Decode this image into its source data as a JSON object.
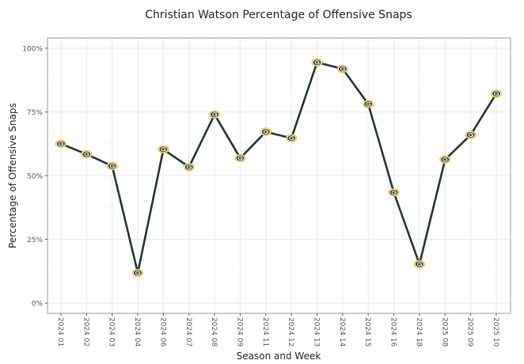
{
  "chart_data": {
    "type": "line",
    "title": "Christian Watson Percentage of Offensive Snaps",
    "xlabel": "Season and Week",
    "ylabel": "Percentage of Offensive Snaps",
    "categories": [
      "2024 01",
      "2024 02",
      "2024 03",
      "2024 04",
      "2024 06",
      "2024 07",
      "2024 08",
      "2024 09",
      "2024 11",
      "2024 12",
      "2024 13",
      "2024 14",
      "2024 15",
      "2024 16",
      "2024 18",
      "2025 08",
      "2025 09",
      "2025 10"
    ],
    "values": [
      62.5,
      58.4,
      53.8,
      11.9,
      60.3,
      53.4,
      74.0,
      56.9,
      67.2,
      64.7,
      94.4,
      91.9,
      78.1,
      43.4,
      15.3,
      56.3,
      66.0,
      82.2
    ],
    "ylim": [
      -4,
      104
    ],
    "yticks": [
      0,
      25,
      50,
      75,
      100
    ],
    "ytick_labels": [
      "0%",
      "25%",
      "50%",
      "75%",
      "100%"
    ],
    "grid": true,
    "line_color": "#203731",
    "marker": "packers-logo-icon",
    "marker_colors": {
      "green": "#203731",
      "gold": "#FFB612"
    }
  }
}
